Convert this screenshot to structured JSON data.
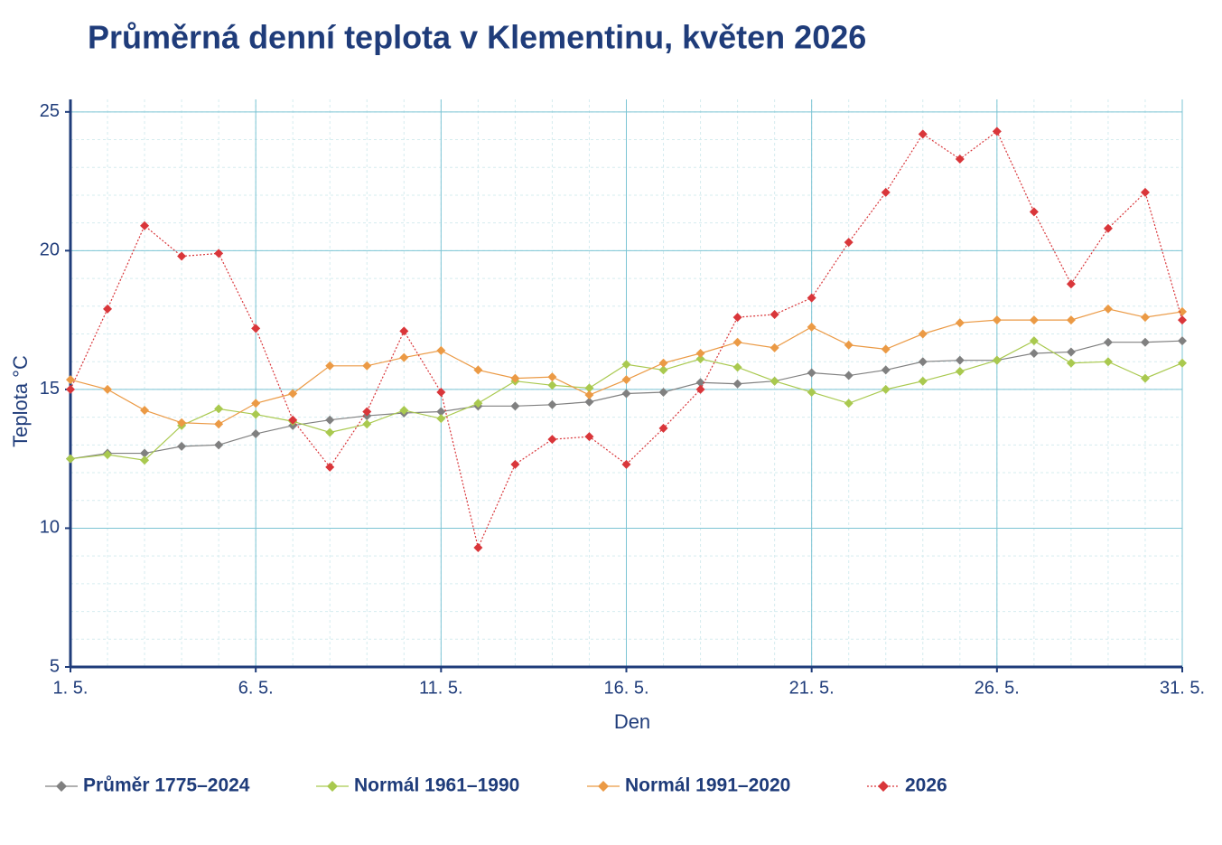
{
  "chart_data": {
    "type": "line",
    "title": "Průměrná denní teplota v Klementinu, květen 2026",
    "x_label": "Den",
    "y_label": "Teplota  °C",
    "x": [
      1,
      2,
      3,
      4,
      5,
      6,
      7,
      8,
      9,
      10,
      11,
      12,
      13,
      14,
      15,
      16,
      17,
      18,
      19,
      20,
      21,
      22,
      23,
      24,
      25,
      26,
      27,
      28,
      29,
      30,
      31
    ],
    "xlim": [
      1,
      31
    ],
    "xticks": [
      {
        "value": 1,
        "label": "1. 5."
      },
      {
        "value": 6,
        "label": "6. 5."
      },
      {
        "value": 11,
        "label": "11. 5."
      },
      {
        "value": 16,
        "label": "16. 5."
      },
      {
        "value": 21,
        "label": "21. 5."
      },
      {
        "value": 26,
        "label": "26. 5."
      },
      {
        "value": 31,
        "label": "31. 5."
      }
    ],
    "ylim": [
      5,
      25.45
    ],
    "yticks": [
      5,
      10,
      15,
      20,
      25
    ],
    "grid": true,
    "minor_grid": true,
    "legend": "bottom",
    "series": [
      {
        "name": "Průměr 1775–2024",
        "color": "#808080",
        "dash": "solid",
        "values": [
          12.5,
          12.7,
          12.7,
          12.95,
          13.0,
          13.4,
          13.7,
          13.9,
          14.05,
          14.15,
          14.2,
          14.4,
          14.4,
          14.45,
          14.55,
          14.85,
          14.9,
          15.25,
          15.2,
          15.3,
          15.6,
          15.5,
          15.7,
          16.0,
          16.05,
          16.05,
          16.3,
          16.35,
          16.7,
          16.7,
          16.75
        ]
      },
      {
        "name": "Normál 1961–1990",
        "color": "#a9c94f",
        "dash": "solid",
        "values": [
          12.5,
          12.65,
          12.45,
          13.7,
          14.3,
          14.1,
          13.85,
          13.45,
          13.75,
          14.25,
          13.95,
          14.5,
          15.3,
          15.15,
          15.05,
          15.9,
          15.7,
          16.1,
          15.8,
          15.3,
          14.9,
          14.5,
          15.0,
          15.3,
          15.65,
          16.05,
          16.75,
          15.95,
          16.0,
          15.4,
          15.95
        ]
      },
      {
        "name": "Normál 1991–2020",
        "color": "#eb9a45",
        "dash": "solid",
        "values": [
          15.35,
          15.0,
          14.25,
          13.8,
          13.75,
          14.5,
          14.85,
          15.85,
          15.85,
          16.15,
          16.4,
          15.7,
          15.4,
          15.45,
          14.8,
          15.35,
          15.95,
          16.3,
          16.7,
          16.5,
          17.25,
          16.6,
          16.45,
          17.0,
          17.4,
          17.5,
          17.5,
          17.5,
          17.9,
          17.6,
          17.8
        ]
      },
      {
        "name": "2026",
        "color": "#d9363a",
        "dash": "dotted",
        "values": [
          15.0,
          17.9,
          20.9,
          19.8,
          19.9,
          17.2,
          13.9,
          12.2,
          14.2,
          17.1,
          14.9,
          9.3,
          12.3,
          13.2,
          13.3,
          12.3,
          13.6,
          15.0,
          17.6,
          17.7,
          18.3,
          20.3,
          22.1,
          24.2,
          23.3,
          24.3,
          21.4,
          18.8,
          20.8,
          22.1,
          17.5
        ]
      }
    ]
  }
}
